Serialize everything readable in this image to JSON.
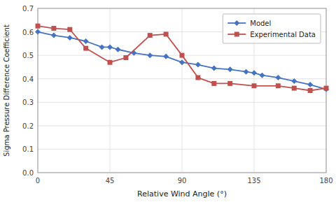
{
  "chart_data": {
    "type": "line",
    "xlabel": "Relative Wind Angle (°)",
    "ylabel": "Sigma Pressure Difference Coefficient",
    "series": [
      {
        "name": "Model",
        "color": "#4472C4",
        "marker": "diamond",
        "x": [
          0,
          10,
          20,
          30,
          40,
          45,
          50,
          60,
          70,
          80,
          90,
          100,
          110,
          120,
          130,
          135,
          140,
          150,
          160,
          170,
          180
        ],
        "values": [
          0.6,
          0.585,
          0.575,
          0.56,
          0.535,
          0.535,
          0.525,
          0.51,
          0.5,
          0.495,
          0.47,
          0.46,
          0.445,
          0.44,
          0.43,
          0.425,
          0.415,
          0.405,
          0.39,
          0.375,
          0.355
        ]
      },
      {
        "name": "Experimental Data",
        "color": "#C0504D",
        "marker": "square",
        "x": [
          0,
          10,
          20,
          30,
          45,
          55,
          70,
          80,
          90,
          100,
          110,
          120,
          135,
          150,
          160,
          170,
          180
        ],
        "values": [
          0.625,
          0.615,
          0.61,
          0.53,
          0.47,
          0.49,
          0.585,
          0.59,
          0.5,
          0.405,
          0.38,
          0.38,
          0.37,
          0.37,
          0.36,
          0.35,
          0.36
        ]
      }
    ],
    "xlim": [
      0,
      180
    ],
    "ylim": [
      0,
      0.7
    ],
    "xticks": [
      0,
      45,
      90,
      135,
      180
    ],
    "yticks": [
      {
        "value": 0,
        "label": "0.0"
      },
      0.1,
      0.2,
      0.3,
      0.4,
      0.5,
      0.6,
      0.7
    ],
    "grid": true,
    "legend": "upper right"
  }
}
